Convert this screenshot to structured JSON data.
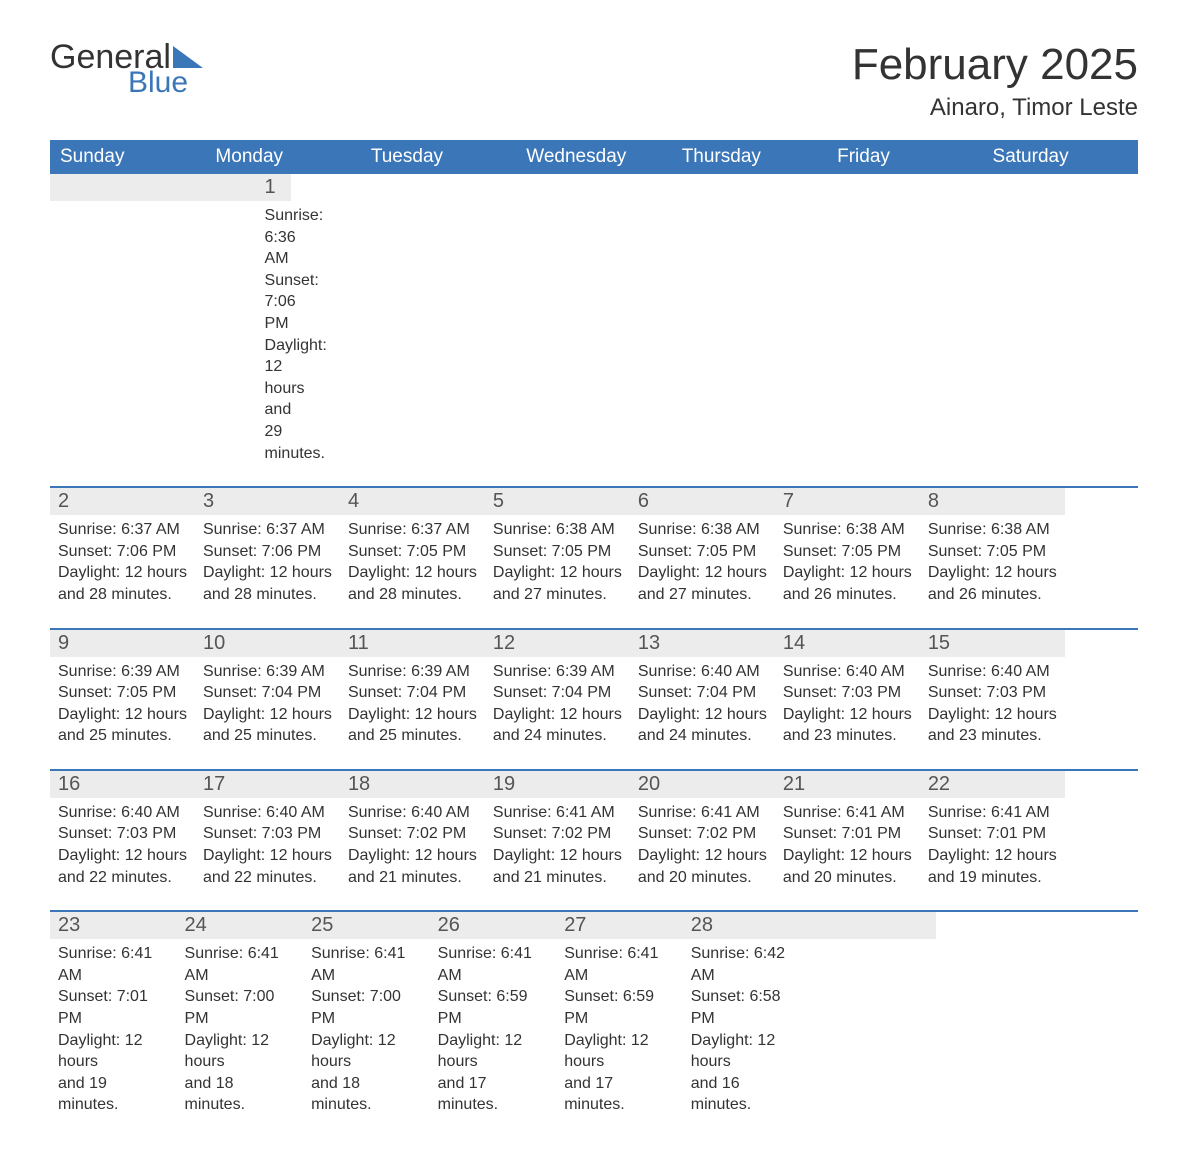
{
  "logo": {
    "general": "General",
    "blue": "Blue",
    "triangle_color": "#3a76b8"
  },
  "title": "February 2025",
  "location": "Ainaro, Timor Leste",
  "colors": {
    "header_bg": "#3a76b8",
    "header_text": "#ffffff",
    "daynum_bg": "#ececec",
    "rule": "#3a76b8",
    "text": "#333333",
    "bg": "#ffffff"
  },
  "typography": {
    "title_fontsize": 44,
    "location_fontsize": 24,
    "weekday_fontsize": 19,
    "daynum_fontsize": 20,
    "body_fontsize": 16,
    "logo_fontsize": 34
  },
  "weekdays": [
    "Sunday",
    "Monday",
    "Tuesday",
    "Wednesday",
    "Thursday",
    "Friday",
    "Saturday"
  ],
  "weeks": [
    [
      {},
      {},
      {},
      {},
      {},
      {},
      {
        "n": "1",
        "sunrise": "Sunrise: 6:36 AM",
        "sunset": "Sunset: 7:06 PM",
        "day1": "Daylight: 12 hours",
        "day2": "and 29 minutes."
      }
    ],
    [
      {
        "n": "2",
        "sunrise": "Sunrise: 6:37 AM",
        "sunset": "Sunset: 7:06 PM",
        "day1": "Daylight: 12 hours",
        "day2": "and 28 minutes."
      },
      {
        "n": "3",
        "sunrise": "Sunrise: 6:37 AM",
        "sunset": "Sunset: 7:06 PM",
        "day1": "Daylight: 12 hours",
        "day2": "and 28 minutes."
      },
      {
        "n": "4",
        "sunrise": "Sunrise: 6:37 AM",
        "sunset": "Sunset: 7:05 PM",
        "day1": "Daylight: 12 hours",
        "day2": "and 28 minutes."
      },
      {
        "n": "5",
        "sunrise": "Sunrise: 6:38 AM",
        "sunset": "Sunset: 7:05 PM",
        "day1": "Daylight: 12 hours",
        "day2": "and 27 minutes."
      },
      {
        "n": "6",
        "sunrise": "Sunrise: 6:38 AM",
        "sunset": "Sunset: 7:05 PM",
        "day1": "Daylight: 12 hours",
        "day2": "and 27 minutes."
      },
      {
        "n": "7",
        "sunrise": "Sunrise: 6:38 AM",
        "sunset": "Sunset: 7:05 PM",
        "day1": "Daylight: 12 hours",
        "day2": "and 26 minutes."
      },
      {
        "n": "8",
        "sunrise": "Sunrise: 6:38 AM",
        "sunset": "Sunset: 7:05 PM",
        "day1": "Daylight: 12 hours",
        "day2": "and 26 minutes."
      }
    ],
    [
      {
        "n": "9",
        "sunrise": "Sunrise: 6:39 AM",
        "sunset": "Sunset: 7:05 PM",
        "day1": "Daylight: 12 hours",
        "day2": "and 25 minutes."
      },
      {
        "n": "10",
        "sunrise": "Sunrise: 6:39 AM",
        "sunset": "Sunset: 7:04 PM",
        "day1": "Daylight: 12 hours",
        "day2": "and 25 minutes."
      },
      {
        "n": "11",
        "sunrise": "Sunrise: 6:39 AM",
        "sunset": "Sunset: 7:04 PM",
        "day1": "Daylight: 12 hours",
        "day2": "and 25 minutes."
      },
      {
        "n": "12",
        "sunrise": "Sunrise: 6:39 AM",
        "sunset": "Sunset: 7:04 PM",
        "day1": "Daylight: 12 hours",
        "day2": "and 24 minutes."
      },
      {
        "n": "13",
        "sunrise": "Sunrise: 6:40 AM",
        "sunset": "Sunset: 7:04 PM",
        "day1": "Daylight: 12 hours",
        "day2": "and 24 minutes."
      },
      {
        "n": "14",
        "sunrise": "Sunrise: 6:40 AM",
        "sunset": "Sunset: 7:03 PM",
        "day1": "Daylight: 12 hours",
        "day2": "and 23 minutes."
      },
      {
        "n": "15",
        "sunrise": "Sunrise: 6:40 AM",
        "sunset": "Sunset: 7:03 PM",
        "day1": "Daylight: 12 hours",
        "day2": "and 23 minutes."
      }
    ],
    [
      {
        "n": "16",
        "sunrise": "Sunrise: 6:40 AM",
        "sunset": "Sunset: 7:03 PM",
        "day1": "Daylight: 12 hours",
        "day2": "and 22 minutes."
      },
      {
        "n": "17",
        "sunrise": "Sunrise: 6:40 AM",
        "sunset": "Sunset: 7:03 PM",
        "day1": "Daylight: 12 hours",
        "day2": "and 22 minutes."
      },
      {
        "n": "18",
        "sunrise": "Sunrise: 6:40 AM",
        "sunset": "Sunset: 7:02 PM",
        "day1": "Daylight: 12 hours",
        "day2": "and 21 minutes."
      },
      {
        "n": "19",
        "sunrise": "Sunrise: 6:41 AM",
        "sunset": "Sunset: 7:02 PM",
        "day1": "Daylight: 12 hours",
        "day2": "and 21 minutes."
      },
      {
        "n": "20",
        "sunrise": "Sunrise: 6:41 AM",
        "sunset": "Sunset: 7:02 PM",
        "day1": "Daylight: 12 hours",
        "day2": "and 20 minutes."
      },
      {
        "n": "21",
        "sunrise": "Sunrise: 6:41 AM",
        "sunset": "Sunset: 7:01 PM",
        "day1": "Daylight: 12 hours",
        "day2": "and 20 minutes."
      },
      {
        "n": "22",
        "sunrise": "Sunrise: 6:41 AM",
        "sunset": "Sunset: 7:01 PM",
        "day1": "Daylight: 12 hours",
        "day2": "and 19 minutes."
      }
    ],
    [
      {
        "n": "23",
        "sunrise": "Sunrise: 6:41 AM",
        "sunset": "Sunset: 7:01 PM",
        "day1": "Daylight: 12 hours",
        "day2": "and 19 minutes."
      },
      {
        "n": "24",
        "sunrise": "Sunrise: 6:41 AM",
        "sunset": "Sunset: 7:00 PM",
        "day1": "Daylight: 12 hours",
        "day2": "and 18 minutes."
      },
      {
        "n": "25",
        "sunrise": "Sunrise: 6:41 AM",
        "sunset": "Sunset: 7:00 PM",
        "day1": "Daylight: 12 hours",
        "day2": "and 18 minutes."
      },
      {
        "n": "26",
        "sunrise": "Sunrise: 6:41 AM",
        "sunset": "Sunset: 6:59 PM",
        "day1": "Daylight: 12 hours",
        "day2": "and 17 minutes."
      },
      {
        "n": "27",
        "sunrise": "Sunrise: 6:41 AM",
        "sunset": "Sunset: 6:59 PM",
        "day1": "Daylight: 12 hours",
        "day2": "and 17 minutes."
      },
      {
        "n": "28",
        "sunrise": "Sunrise: 6:42 AM",
        "sunset": "Sunset: 6:58 PM",
        "day1": "Daylight: 12 hours",
        "day2": "and 16 minutes."
      },
      {}
    ]
  ]
}
